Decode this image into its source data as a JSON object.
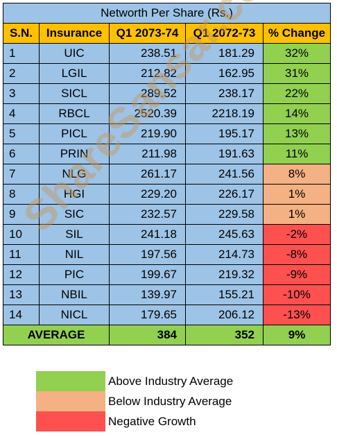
{
  "title": "Networth Per Share (Rs.)",
  "headers": [
    "S.N.",
    "Insurance",
    "Q1 2073-74",
    "Q1 2072-73",
    "% Change"
  ],
  "rows": [
    {
      "sn": "1",
      "insurance": "UIC",
      "q1_2073_74": "238.51",
      "q1_2072_73": "181.29",
      "change": "32%",
      "category": "above"
    },
    {
      "sn": "2",
      "insurance": "LGIL",
      "q1_2073_74": "212.82",
      "q1_2072_73": "162.95",
      "change": "31%",
      "category": "above"
    },
    {
      "sn": "3",
      "insurance": "SICL",
      "q1_2073_74": "289.52",
      "q1_2072_73": "238.17",
      "change": "22%",
      "category": "above"
    },
    {
      "sn": "4",
      "insurance": "RBCL",
      "q1_2073_74": "2520.39",
      "q1_2072_73": "2218.19",
      "change": "14%",
      "category": "above"
    },
    {
      "sn": "5",
      "insurance": "PICL",
      "q1_2073_74": "219.90",
      "q1_2072_73": "195.17",
      "change": "13%",
      "category": "above"
    },
    {
      "sn": "6",
      "insurance": "PRIN",
      "q1_2073_74": "211.98",
      "q1_2072_73": "191.63",
      "change": "11%",
      "category": "above"
    },
    {
      "sn": "7",
      "insurance": "NLG",
      "q1_2073_74": "261.17",
      "q1_2072_73": "241.56",
      "change": "8%",
      "category": "below"
    },
    {
      "sn": "8",
      "insurance": "HGI",
      "q1_2073_74": "229.20",
      "q1_2072_73": "226.17",
      "change": "1%",
      "category": "below"
    },
    {
      "sn": "9",
      "insurance": "SIC",
      "q1_2073_74": "232.57",
      "q1_2072_73": "229.58",
      "change": "1%",
      "category": "below"
    },
    {
      "sn": "10",
      "insurance": "SIL",
      "q1_2073_74": "241.18",
      "q1_2072_73": "245.63",
      "change": "-2%",
      "category": "negative"
    },
    {
      "sn": "11",
      "insurance": "NIL",
      "q1_2073_74": "197.56",
      "q1_2072_73": "214.73",
      "change": "-8%",
      "category": "negative"
    },
    {
      "sn": "12",
      "insurance": "PIC",
      "q1_2073_74": "199.67",
      "q1_2072_73": "219.32",
      "change": "-9%",
      "category": "negative"
    },
    {
      "sn": "13",
      "insurance": "NBIL",
      "q1_2073_74": "139.97",
      "q1_2072_73": "155.21",
      "change": "-10%",
      "category": "negative"
    },
    {
      "sn": "14",
      "insurance": "NICL",
      "q1_2073_74": "179.65",
      "q1_2072_73": "206.12",
      "change": "-13%",
      "category": "negative"
    }
  ],
  "average": {
    "label": "AVERAGE",
    "q1_2073_74": "384",
    "q1_2072_73": "352",
    "change": "9%"
  },
  "legend": [
    {
      "label": "Above Industry Average",
      "color": "#92d050"
    },
    {
      "label": "Below Industry Average",
      "color": "#f4b183"
    },
    {
      "label": "Negative Growth",
      "color": "#ff5050"
    }
  ],
  "category_colors": {
    "above": "#92d050",
    "below": "#f4b183",
    "negative": "#ff5050"
  },
  "watermark": "ShareSansar.com"
}
